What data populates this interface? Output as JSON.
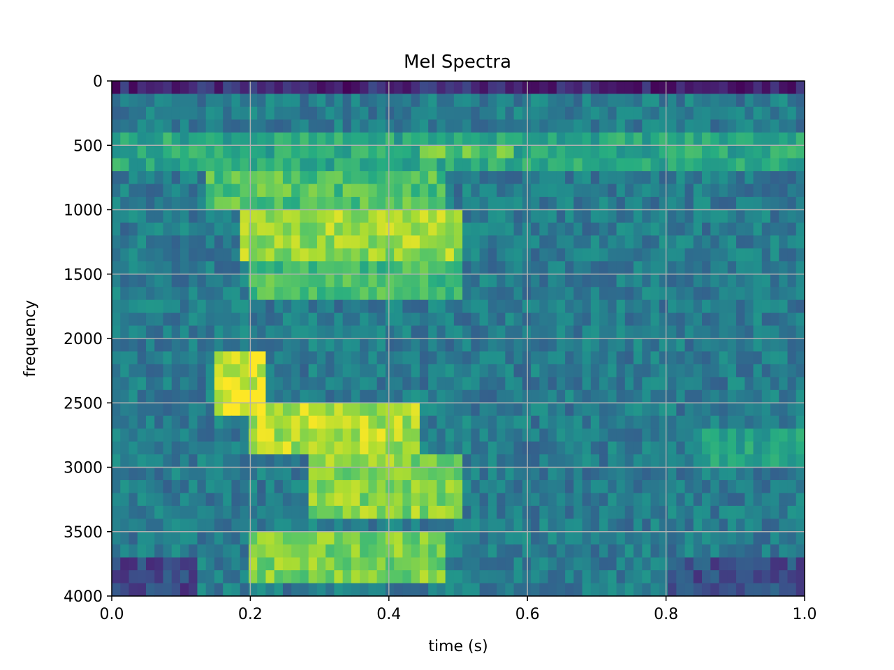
{
  "chart_data": {
    "type": "heatmap",
    "title": "Mel Spectra",
    "xlabel": "time (s)",
    "ylabel": "frequency",
    "xlim": [
      0.0,
      1.0
    ],
    "ylim": [
      4000,
      0
    ],
    "y_inverted": true,
    "grid": true,
    "colormap": "viridis",
    "x_ticks": [
      0.0,
      0.2,
      0.4,
      0.6,
      0.8,
      1.0
    ],
    "x_tick_labels": [
      "0.0",
      "0.2",
      "0.4",
      "0.6",
      "0.8",
      "1.0"
    ],
    "y_ticks": [
      0,
      500,
      1000,
      1500,
      2000,
      2500,
      3000,
      3500,
      4000
    ],
    "y_tick_labels": [
      "0",
      "500",
      "1000",
      "1500",
      "2000",
      "2500",
      "3000",
      "3500",
      "4000"
    ],
    "grid_shape": {
      "time_frames": 81,
      "frequency_bins": 40
    },
    "energy_regions": [
      {
        "time": [
          0.0,
          1.0
        ],
        "frequency": [
          0,
          80
        ],
        "level": 0.05
      },
      {
        "time": [
          0.0,
          1.0
        ],
        "frequency": [
          80,
          400
        ],
        "level": 0.38
      },
      {
        "time": [
          0.0,
          1.0
        ],
        "frequency": [
          400,
          650
        ],
        "level": 0.6
      },
      {
        "time": [
          0.44,
          0.58
        ],
        "frequency": [
          480,
          620
        ],
        "level": 0.75
      },
      {
        "time": [
          0.14,
          0.48
        ],
        "frequency": [
          750,
          1000
        ],
        "level": 0.72
      },
      {
        "time": [
          0.18,
          0.5
        ],
        "frequency": [
          1000,
          1400
        ],
        "level": 0.85
      },
      {
        "time": [
          0.2,
          0.5
        ],
        "frequency": [
          1400,
          1700
        ],
        "level": 0.7
      },
      {
        "time": [
          0.15,
          0.22
        ],
        "frequency": [
          2100,
          2550
        ],
        "level": 0.95
      },
      {
        "time": [
          0.2,
          0.45
        ],
        "frequency": [
          2500,
          2900
        ],
        "level": 0.88
      },
      {
        "time": [
          0.28,
          0.5
        ],
        "frequency": [
          2900,
          3400
        ],
        "level": 0.82
      },
      {
        "time": [
          0.2,
          0.48
        ],
        "frequency": [
          3500,
          3900
        ],
        "level": 0.8
      },
      {
        "time": [
          0.0,
          0.12
        ],
        "frequency": [
          3700,
          4000
        ],
        "level": 0.12
      },
      {
        "time": [
          0.8,
          1.0
        ],
        "frequency": [
          3700,
          4000
        ],
        "level": 0.15
      },
      {
        "time": [
          0.85,
          1.0
        ],
        "frequency": [
          2700,
          2950
        ],
        "level": 0.58
      }
    ]
  }
}
